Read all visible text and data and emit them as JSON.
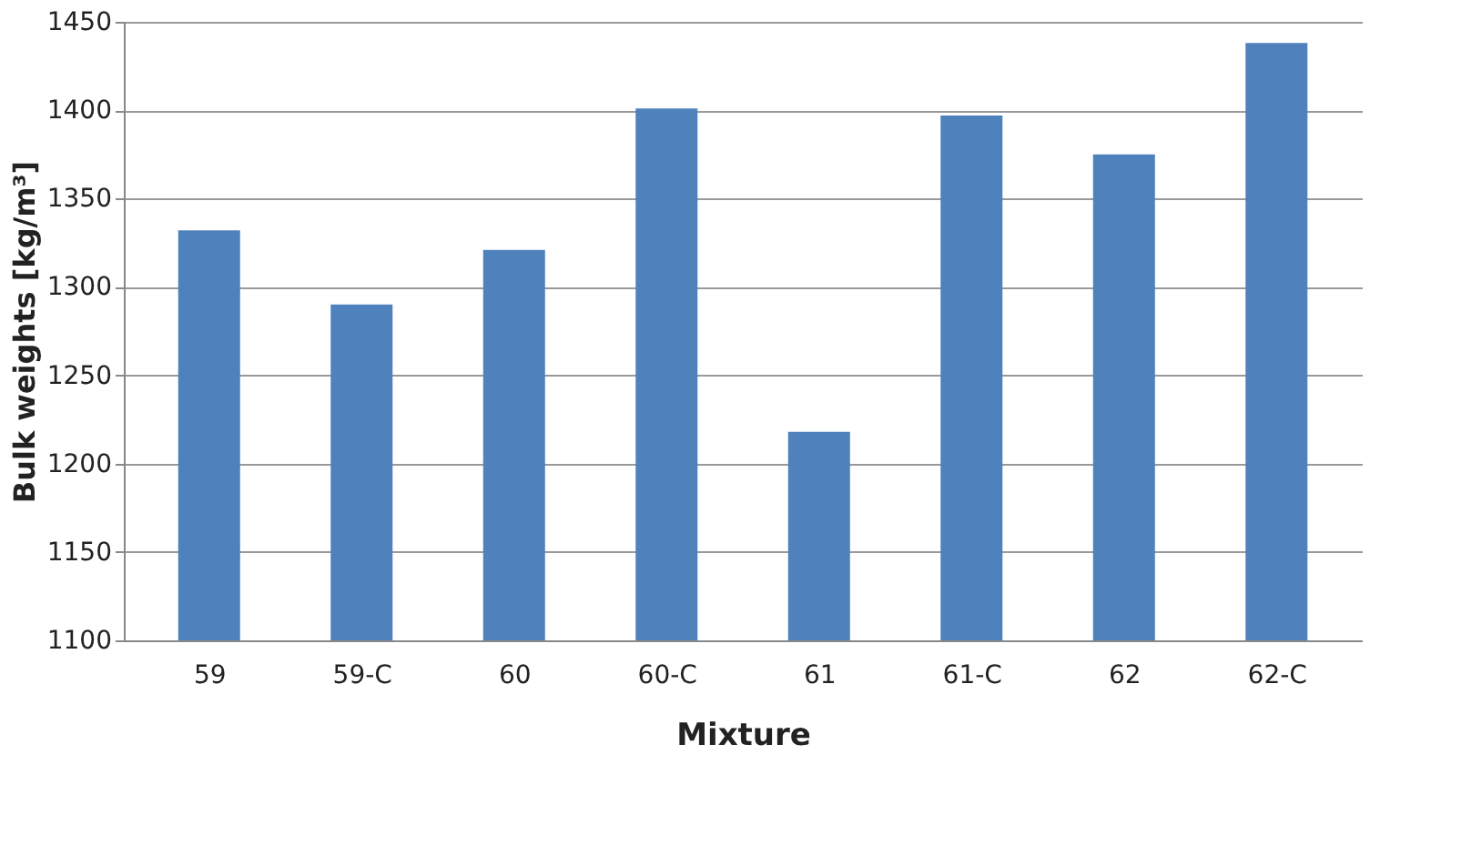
{
  "chart_data": {
    "type": "bar",
    "xlabel": "Mixture",
    "ylabel": "Bulk weights [kg/m³]",
    "categories": [
      "59",
      "59-C",
      "60",
      "60-C",
      "61",
      "61-C",
      "62",
      "62-C"
    ],
    "values": [
      1332,
      1290,
      1321,
      1401,
      1218,
      1397,
      1375,
      1438
    ],
    "color": "#4f81bd",
    "ylim": [
      1100,
      1450
    ],
    "yticks": [
      1100,
      1150,
      1200,
      1250,
      1300,
      1350,
      1400,
      1450
    ],
    "grid": "y"
  }
}
